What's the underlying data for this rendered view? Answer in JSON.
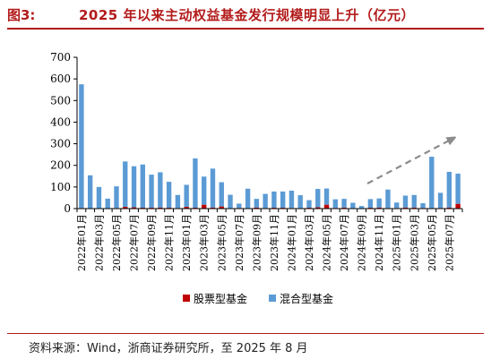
{
  "figure": {
    "label": "图3:",
    "title": "2025 年以来主动权益基金发行规模明显上升（亿元）",
    "source": "资料来源：Wind，浙商证券研究所，至 2025 年 8 月"
  },
  "colors": {
    "title": "#b31b1b",
    "stock_fund": "#c00000",
    "hybrid_fund": "#5b9bd5",
    "arrow": "#8c8c8c",
    "axis": "#000000"
  },
  "chart_data": {
    "type": "bar",
    "stacked": true,
    "title": "2025 年以来主动权益基金发行规模明显上升（亿元）",
    "xlabel": "",
    "ylabel": "",
    "ylim": [
      0,
      700
    ],
    "yticks": [
      0,
      100,
      200,
      300,
      400,
      500,
      600,
      700
    ],
    "grid": false,
    "legend_position": "bottom",
    "categories": [
      "2022年01月",
      "2022年02月",
      "2022年03月",
      "2022年04月",
      "2022年05月",
      "2022年06月",
      "2022年07月",
      "2022年08月",
      "2022年09月",
      "2022年10月",
      "2022年11月",
      "2022年12月",
      "2023年01月",
      "2023年02月",
      "2023年03月",
      "2023年04月",
      "2023年05月",
      "2023年06月",
      "2023年07月",
      "2023年08月",
      "2023年09月",
      "2023年10月",
      "2023年11月",
      "2023年12月",
      "2024年01月",
      "2024年02月",
      "2024年03月",
      "2024年04月",
      "2024年05月",
      "2024年06月",
      "2024年07月",
      "2024年08月",
      "2024年09月",
      "2024年10月",
      "2024年11月",
      "2024年12月",
      "2025年01月",
      "2025年02月",
      "2025年03月",
      "2025年04月",
      "2025年05月",
      "2025年06月",
      "2025年07月",
      "2025年08月"
    ],
    "tick_labels": [
      "2022年01月",
      "2022年03月",
      "2022年05月",
      "2022年07月",
      "2022年09月",
      "2022年11月",
      "2023年01月",
      "2023年03月",
      "2023年05月",
      "2023年07月",
      "2023年09月",
      "2023年11月",
      "2024年01月",
      "2024年03月",
      "2024年05月",
      "2024年07月",
      "2024年09月",
      "2024年11月",
      "2025年01月",
      "2025年03月",
      "2025年05月",
      "2025年07月"
    ],
    "series": [
      {
        "name": "股票型基金",
        "values": [
          3,
          2,
          2,
          1,
          3,
          8,
          6,
          4,
          4,
          5,
          4,
          3,
          8,
          4,
          18,
          5,
          10,
          2,
          3,
          2,
          5,
          3,
          4,
          4,
          3,
          2,
          4,
          6,
          18,
          3,
          5,
          2,
          2,
          4,
          5,
          3,
          3,
          5,
          5,
          3,
          2,
          3,
          5,
          22
        ]
      },
      {
        "name": "混合型基金",
        "values": [
          572,
          152,
          98,
          45,
          100,
          210,
          190,
          200,
          153,
          163,
          120,
          60,
          102,
          228,
          130,
          180,
          112,
          62,
          20,
          90,
          40,
          65,
          75,
          75,
          80,
          60,
          35,
          85,
          75,
          40,
          40,
          25,
          10,
          40,
          42,
          85,
          25,
          55,
          58,
          22,
          238,
          70,
          165,
          140
        ]
      }
    ],
    "annotation": "dashed upward arrow over 2024年09月–2025年08月"
  }
}
